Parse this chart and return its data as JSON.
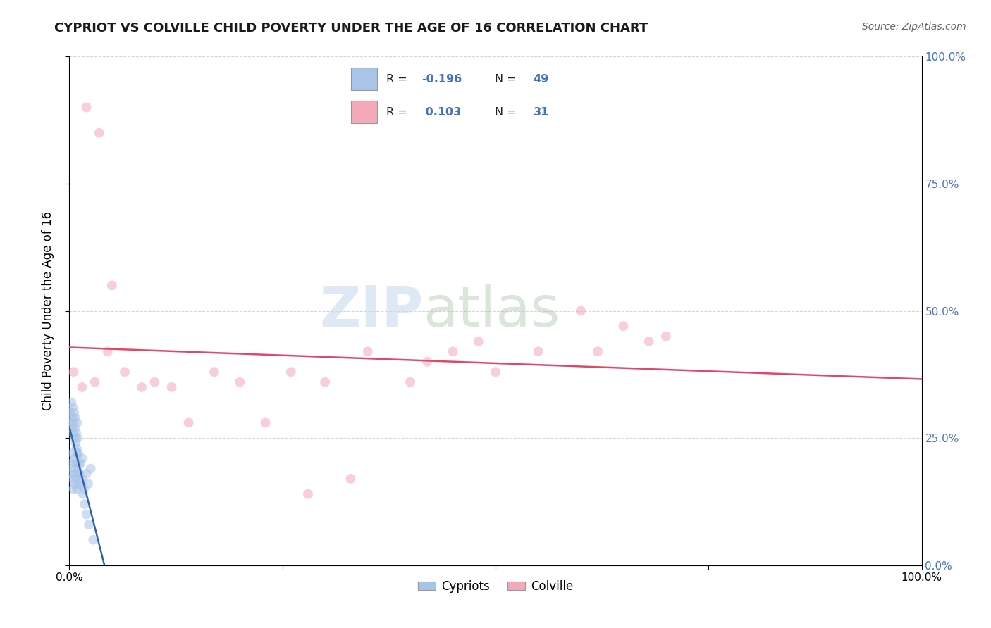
{
  "title": "CYPRIOT VS COLVILLE CHILD POVERTY UNDER THE AGE OF 16 CORRELATION CHART",
  "source": "Source: ZipAtlas.com",
  "ylabel": "Child Poverty Under the Age of 16",
  "legend_label1": "Cypriots",
  "legend_label2": "Colville",
  "R_cypriot": -0.196,
  "N_cypriot": 49,
  "R_colville": 0.103,
  "N_colville": 31,
  "cypriot_color": "#a8c4e8",
  "colville_color": "#f4a8b8",
  "cypriot_line_color": "#3060b0",
  "colville_line_color": "#e04868",
  "watermark_zip": "ZIP",
  "watermark_atlas": "atlas",
  "ytick_values": [
    0,
    25,
    50,
    75,
    100
  ],
  "xtick_values": [
    0,
    25,
    50,
    75,
    100
  ],
  "cypriot_x": [
    0.2,
    0.3,
    0.4,
    0.4,
    0.5,
    0.5,
    0.6,
    0.6,
    0.7,
    0.8,
    0.8,
    0.9,
    1.0,
    1.0,
    1.1,
    1.2,
    1.3,
    1.5,
    1.5,
    1.7,
    2.0,
    2.2,
    2.5,
    0.15,
    0.2,
    0.25,
    0.3,
    0.35,
    0.4,
    0.45,
    0.5,
    0.55,
    0.6,
    0.65,
    0.7,
    0.75,
    0.8,
    0.85,
    0.9,
    0.95,
    1.0,
    1.1,
    1.2,
    1.4,
    1.6,
    1.8,
    2.0,
    2.3,
    2.8
  ],
  "cypriot_y": [
    18,
    20,
    17,
    22,
    15,
    19,
    21,
    16,
    18,
    20,
    17,
    15,
    22,
    19,
    18,
    16,
    20,
    17,
    21,
    15,
    18,
    16,
    19,
    30,
    28,
    32,
    27,
    29,
    31,
    26,
    28,
    30,
    25,
    27,
    29,
    24,
    26,
    23,
    28,
    25,
    22,
    20,
    18,
    16,
    14,
    12,
    10,
    8,
    5
  ],
  "colville_x": [
    0.5,
    1.5,
    3.0,
    4.5,
    6.5,
    8.5,
    10.0,
    12.0,
    14.0,
    17.0,
    20.0,
    23.0,
    26.0,
    30.0,
    35.0,
    40.0,
    45.0,
    50.0,
    55.0,
    60.0,
    65.0,
    70.0,
    2.0,
    3.5,
    5.0,
    28.0,
    33.0,
    42.0,
    48.0,
    62.0,
    68.0
  ],
  "colville_y": [
    38,
    35,
    36,
    42,
    38,
    35,
    36,
    35,
    28,
    38,
    36,
    28,
    38,
    36,
    42,
    36,
    42,
    38,
    42,
    50,
    47,
    45,
    90,
    85,
    55,
    14,
    17,
    40,
    44,
    42,
    44
  ],
  "xmin": 0,
  "xmax": 100,
  "ymin": 0,
  "ymax": 100,
  "marker_size": 100,
  "marker_alpha": 0.55,
  "background_color": "#ffffff",
  "grid_color": "#bbbbbb",
  "grid_alpha": 0.6,
  "title_fontsize": 13,
  "source_fontsize": 10,
  "axis_label_fontsize": 12,
  "tick_fontsize": 11
}
